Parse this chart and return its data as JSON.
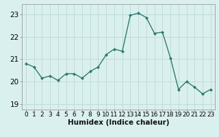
{
  "x": [
    0,
    1,
    2,
    3,
    4,
    5,
    6,
    7,
    8,
    9,
    10,
    11,
    12,
    13,
    14,
    15,
    16,
    17,
    18,
    19,
    20,
    21,
    22,
    23
  ],
  "y": [
    20.8,
    20.65,
    20.15,
    20.25,
    20.05,
    20.35,
    20.35,
    20.15,
    20.45,
    20.65,
    21.2,
    21.45,
    21.35,
    22.95,
    23.05,
    22.85,
    22.15,
    22.2,
    21.05,
    19.65,
    20.0,
    19.75,
    19.45,
    19.65
  ],
  "line_color": "#2d7a6e",
  "marker_color": "#2d7a6e",
  "bg_color": "#daf0ee",
  "grid_color": "#c0dbd8",
  "ylabel_ticks": [
    19,
    20,
    21,
    22,
    23
  ],
  "xlabel": "Humidex (Indice chaleur)",
  "ylim": [
    18.75,
    23.45
  ],
  "xlim": [
    -0.5,
    23.5
  ],
  "xlabel_fontsize": 7.5,
  "tick_fontsize": 7
}
